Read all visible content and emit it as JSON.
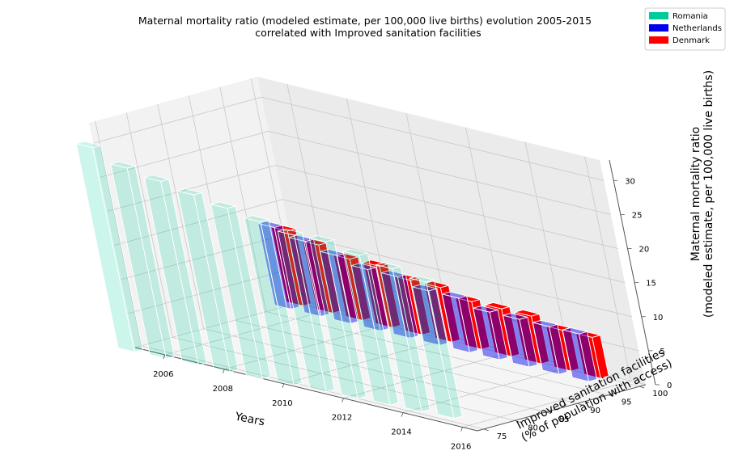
{
  "chart_data": {
    "type": "bar3d",
    "title": [
      "Maternal mortality ratio (modeled estimate, per 100,000 live births) evolution 2005-2015",
      "correlated with Improved sanitation facilities"
    ],
    "xlabel": "Years",
    "ylabel": [
      "Improved sanitation facilities",
      "(% of population with access)"
    ],
    "zlabel": [
      "Maternal mortality ratio",
      "(modeled estimate, per 100,000 live births)"
    ],
    "x_ticks": [
      "2006",
      "2008",
      "2010",
      "2012",
      "2014",
      "2016"
    ],
    "y_ticks": [
      "75",
      "80",
      "85",
      "90",
      "95",
      "100"
    ],
    "z_ticks": [
      "0",
      "5",
      "10",
      "15",
      "20",
      "25",
      "30"
    ],
    "xlim": [
      2005,
      2016.5
    ],
    "ylim": [
      74,
      101
    ],
    "zlim": [
      0,
      33
    ],
    "legend_position": "top-right",
    "colors": {
      "Romania": "#00cc99",
      "Netherlands": "#0000ee",
      "Denmark": "#ff0000"
    },
    "categories": [
      "2005",
      "2006",
      "2007",
      "2008",
      "2009",
      "2010",
      "2011",
      "2012",
      "2013",
      "2014",
      "2015"
    ],
    "series": [
      {
        "name": "Romania",
        "years": [
          2005,
          2006,
          2007,
          2008,
          2009,
          2010,
          2011,
          2012,
          2013,
          2014,
          2015
        ],
        "sanitation": [
          72.6,
          72.9,
          73.3,
          73.6,
          74.0,
          74.3,
          74.7,
          75.0,
          75.4,
          75.7,
          76.1
        ],
        "mortality": [
          30,
          28,
          27,
          26,
          25,
          24,
          23,
          23,
          22,
          21,
          20
        ]
      },
      {
        "name": "Netherlands",
        "years": [
          2005,
          2006,
          2007,
          2008,
          2009,
          2010,
          2011,
          2012,
          2013,
          2014,
          2015
        ],
        "sanitation": [
          97.7,
          97.7,
          97.7,
          97.7,
          97.7,
          97.7,
          97.7,
          97.7,
          97.7,
          97.7,
          97.7
        ],
        "mortality": [
          12,
          11,
          10,
          9,
          9,
          8,
          8,
          7,
          7,
          7,
          7
        ]
      },
      {
        "name": "Denmark",
        "years": [
          2005,
          2006,
          2007,
          2008,
          2009,
          2010,
          2011,
          2012,
          2013,
          2014,
          2015
        ],
        "sanitation": [
          99.6,
          99.6,
          99.6,
          99.6,
          99.6,
          99.6,
          99.6,
          99.6,
          99.6,
          99.6,
          99.6
        ],
        "mortality": [
          11,
          10,
          9,
          9,
          8,
          8,
          7,
          7,
          7,
          6,
          6
        ]
      }
    ]
  }
}
